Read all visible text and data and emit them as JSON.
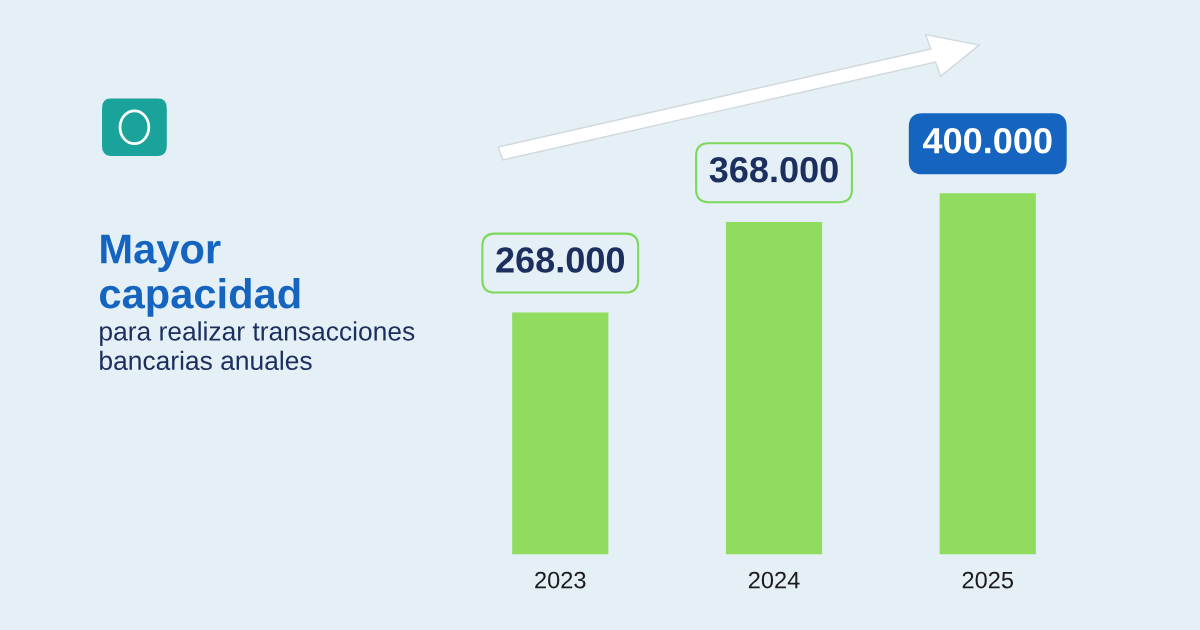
{
  "chart_data": {
    "type": "bar",
    "title": "Mayor capacidad",
    "subtitle": "para realizar transacciones bancarias anuales",
    "categories": [
      "2023",
      "2024",
      "2025"
    ],
    "values": [
      268000,
      368000,
      400000
    ],
    "value_labels": [
      "268.000",
      "368.000",
      "400.000"
    ],
    "color": "#8fdc5e",
    "grid": false,
    "legend": false
  }
}
